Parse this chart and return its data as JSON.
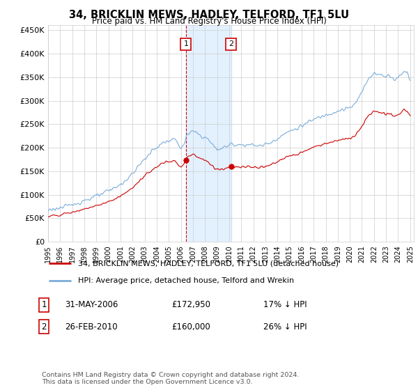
{
  "title": "34, BRICKLIN MEWS, HADLEY, TELFORD, TF1 5LU",
  "subtitle": "Price paid vs. HM Land Registry's House Price Index (HPI)",
  "legend_label_red": "34, BRICKLIN MEWS, HADLEY, TELFORD, TF1 5LU (detached house)",
  "legend_label_blue": "HPI: Average price, detached house, Telford and Wrekin",
  "transaction1_label": "1",
  "transaction1_date": "31-MAY-2006",
  "transaction1_price": "£172,950",
  "transaction1_hpi": "17% ↓ HPI",
  "transaction1_x": 2006.42,
  "transaction1_y": 172950,
  "transaction2_label": "2",
  "transaction2_date": "26-FEB-2010",
  "transaction2_price": "£160,000",
  "transaction2_hpi": "26% ↓ HPI",
  "transaction2_x": 2010.15,
  "transaction2_y": 160000,
  "footer": "Contains HM Land Registry data © Crown copyright and database right 2024.\nThis data is licensed under the Open Government Licence v3.0.",
  "ylim": [
    0,
    460000
  ],
  "yticks": [
    0,
    50000,
    100000,
    150000,
    200000,
    250000,
    300000,
    350000,
    400000,
    450000
  ],
  "xlim_left": 1995.0,
  "xlim_right": 2025.3,
  "red_color": "#cc0000",
  "blue_color": "#7aadda",
  "shade_color": "#ddeeff",
  "vline1_color": "#cc0000",
  "vline2_color": "#aaccee"
}
